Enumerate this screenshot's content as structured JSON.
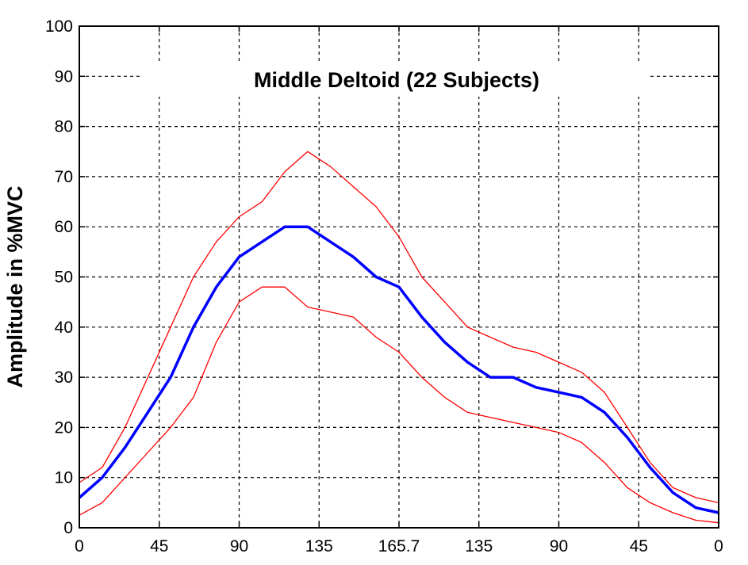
{
  "chart_data": {
    "type": "line",
    "title": "Middle Deltoid (22 Subjects)",
    "xlabel": "",
    "ylabel": "Amplitude in %MVC",
    "ylim": [
      0,
      100
    ],
    "yticks": [
      0,
      10,
      20,
      30,
      40,
      50,
      60,
      70,
      80,
      90,
      100
    ],
    "x_tick_labels": [
      "0",
      "45",
      "90",
      "135",
      "165.7",
      "135",
      "90",
      "45",
      "0"
    ],
    "grid": true,
    "colors": {
      "mean": "#0000ff",
      "band": "#ff0000"
    },
    "series": [
      {
        "role": "upper",
        "values": [
          9,
          12,
          20,
          30,
          40,
          50,
          57,
          62,
          65,
          71,
          75,
          72,
          68,
          64,
          58,
          50,
          45,
          40,
          38,
          36,
          35,
          33,
          31,
          27,
          20,
          13,
          8,
          6,
          5
        ]
      },
      {
        "role": "mean",
        "values": [
          6,
          10,
          16,
          23,
          30,
          40,
          48,
          54,
          57,
          60,
          60,
          57,
          54,
          50,
          48,
          42,
          37,
          33,
          30,
          30,
          28,
          27,
          26,
          23,
          18,
          12,
          7,
          4,
          3
        ]
      },
      {
        "role": "lower",
        "values": [
          2.5,
          5,
          10,
          15,
          20,
          26,
          37,
          45,
          48,
          48,
          44,
          43,
          42,
          38,
          35,
          30,
          26,
          23,
          22,
          21,
          20,
          19,
          17,
          13,
          8,
          5,
          3,
          1.5,
          1
        ]
      }
    ]
  }
}
